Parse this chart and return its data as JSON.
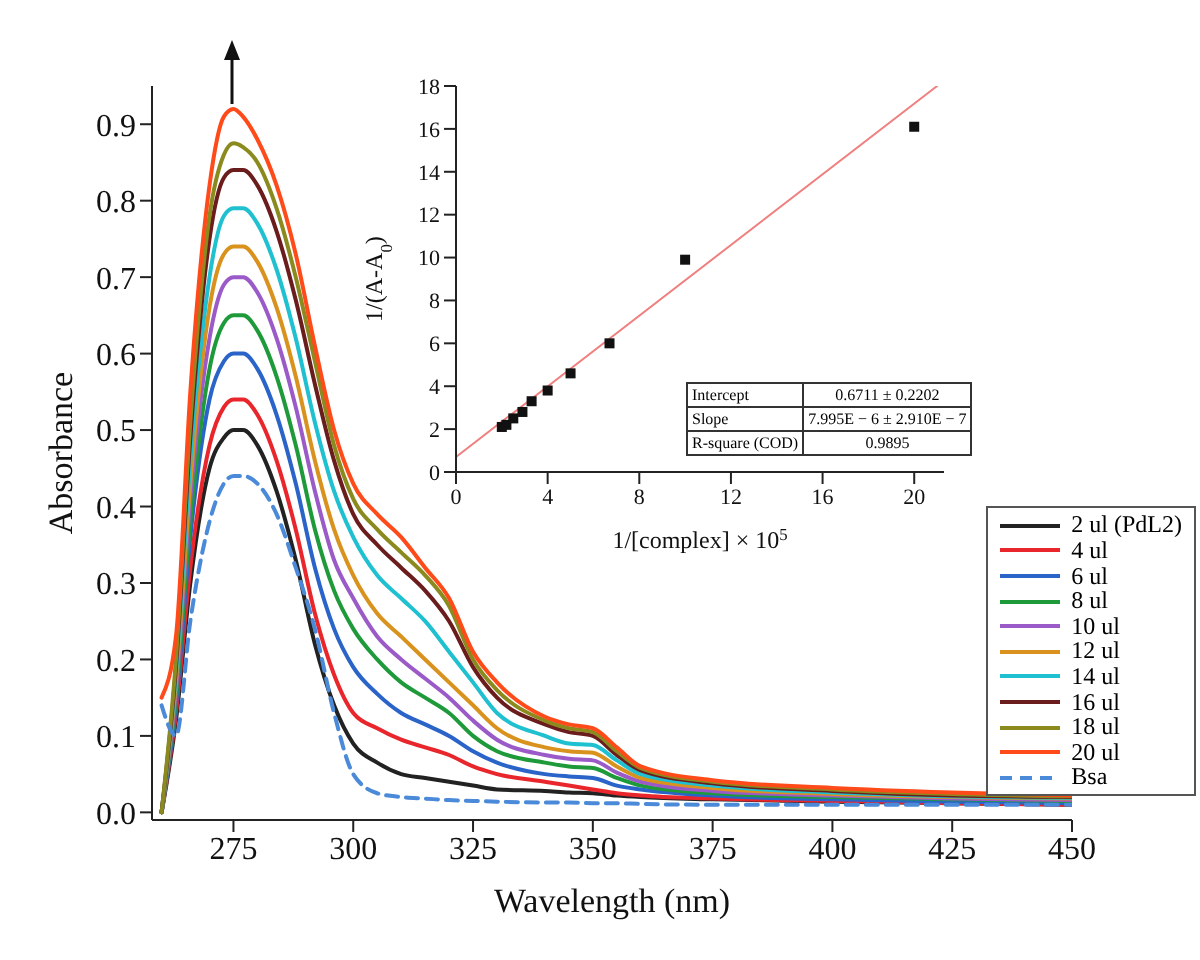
{
  "chart_data": [
    {
      "type": "line",
      "xlabel": "Wavelength (nm)",
      "ylabel": "Absorbance",
      "x": [
        260,
        263,
        266,
        270,
        273,
        275,
        277,
        280,
        284,
        288,
        292,
        296,
        300,
        305,
        310,
        315,
        320,
        325,
        330,
        340,
        345,
        350,
        355,
        360,
        375,
        400,
        425,
        450
      ],
      "series": [
        {
          "name": "2 ul (PdL2)",
          "color": "#222222",
          "values": [
            0.0,
            0.12,
            0.3,
            0.45,
            0.49,
            0.5,
            0.5,
            0.48,
            0.42,
            0.33,
            0.22,
            0.14,
            0.09,
            0.065,
            0.05,
            0.045,
            0.04,
            0.035,
            0.03,
            0.028,
            0.026,
            0.025,
            0.022,
            0.02,
            0.017,
            0.014,
            0.012,
            0.01
          ]
        },
        {
          "name": "4 ul",
          "color": "#e8262b",
          "values": [
            0.0,
            0.13,
            0.32,
            0.48,
            0.53,
            0.54,
            0.54,
            0.52,
            0.46,
            0.37,
            0.26,
            0.18,
            0.13,
            0.11,
            0.095,
            0.085,
            0.075,
            0.06,
            0.05,
            0.04,
            0.035,
            0.03,
            0.025,
            0.022,
            0.018,
            0.015,
            0.012,
            0.01
          ]
        },
        {
          "name": "6 ul",
          "color": "#2a64c8",
          "values": [
            0.0,
            0.14,
            0.36,
            0.54,
            0.59,
            0.6,
            0.6,
            0.58,
            0.52,
            0.43,
            0.32,
            0.24,
            0.19,
            0.155,
            0.13,
            0.115,
            0.1,
            0.08,
            0.065,
            0.05,
            0.047,
            0.045,
            0.035,
            0.03,
            0.022,
            0.017,
            0.014,
            0.012
          ]
        },
        {
          "name": "8 ul",
          "color": "#1f9a3a",
          "values": [
            0.0,
            0.15,
            0.38,
            0.58,
            0.64,
            0.65,
            0.65,
            0.63,
            0.57,
            0.48,
            0.37,
            0.29,
            0.24,
            0.2,
            0.17,
            0.15,
            0.13,
            0.1,
            0.08,
            0.065,
            0.06,
            0.058,
            0.045,
            0.035,
            0.025,
            0.02,
            0.017,
            0.015
          ]
        },
        {
          "name": "10 ul",
          "color": "#9a5ac8",
          "values": [
            0.0,
            0.16,
            0.41,
            0.62,
            0.69,
            0.7,
            0.7,
            0.68,
            0.62,
            0.53,
            0.42,
            0.33,
            0.28,
            0.23,
            0.2,
            0.175,
            0.15,
            0.12,
            0.095,
            0.075,
            0.07,
            0.068,
            0.052,
            0.04,
            0.028,
            0.022,
            0.018,
            0.016
          ]
        },
        {
          "name": "12 ul",
          "color": "#d9921e",
          "values": [
            0.0,
            0.17,
            0.43,
            0.66,
            0.73,
            0.74,
            0.74,
            0.72,
            0.66,
            0.57,
            0.46,
            0.37,
            0.31,
            0.26,
            0.23,
            0.2,
            0.17,
            0.14,
            0.11,
            0.085,
            0.08,
            0.078,
            0.06,
            0.045,
            0.032,
            0.024,
            0.02,
            0.018
          ]
        },
        {
          "name": "14 ul",
          "color": "#1fc0d0",
          "values": [
            0.0,
            0.18,
            0.46,
            0.7,
            0.78,
            0.79,
            0.79,
            0.77,
            0.71,
            0.62,
            0.51,
            0.42,
            0.36,
            0.31,
            0.28,
            0.25,
            0.21,
            0.17,
            0.13,
            0.1,
            0.09,
            0.088,
            0.068,
            0.05,
            0.035,
            0.026,
            0.021,
            0.019
          ]
        },
        {
          "name": "16 ul",
          "color": "#6b1c1c",
          "values": [
            0.0,
            0.19,
            0.49,
            0.75,
            0.83,
            0.84,
            0.84,
            0.82,
            0.76,
            0.67,
            0.56,
            0.46,
            0.39,
            0.35,
            0.32,
            0.29,
            0.25,
            0.19,
            0.15,
            0.115,
            0.105,
            0.1,
            0.075,
            0.055,
            0.038,
            0.028,
            0.022,
            0.02
          ]
        },
        {
          "name": "18 ul",
          "color": "#8a8a1e",
          "values": [
            0.0,
            0.2,
            0.51,
            0.78,
            0.86,
            0.875,
            0.87,
            0.85,
            0.79,
            0.7,
            0.59,
            0.48,
            0.41,
            0.37,
            0.34,
            0.31,
            0.27,
            0.2,
            0.16,
            0.12,
            0.11,
            0.105,
            0.08,
            0.058,
            0.04,
            0.03,
            0.024,
            0.021
          ]
        },
        {
          "name": "20 ul",
          "color": "#ff4a1a",
          "values": [
            0.15,
            0.23,
            0.55,
            0.82,
            0.91,
            0.92,
            0.91,
            0.88,
            0.82,
            0.73,
            0.61,
            0.5,
            0.43,
            0.39,
            0.36,
            0.32,
            0.28,
            0.21,
            0.17,
            0.125,
            0.115,
            0.11,
            0.085,
            0.06,
            0.042,
            0.032,
            0.026,
            0.022
          ]
        },
        {
          "name": "Bsa",
          "color": "#4a8ad8",
          "line_style": "dashed",
          "values": [
            0.14,
            0.1,
            0.25,
            0.38,
            0.43,
            0.44,
            0.44,
            0.43,
            0.39,
            0.32,
            0.24,
            0.13,
            0.05,
            0.025,
            0.02,
            0.018,
            0.016,
            0.015,
            0.014,
            0.013,
            0.013,
            0.012,
            0.012,
            0.011,
            0.01,
            0.01,
            0.01,
            0.01
          ]
        }
      ],
      "xlim": [
        258,
        450
      ],
      "xticks": [
        275,
        300,
        325,
        350,
        375,
        400,
        425,
        450
      ],
      "ylim": [
        -0.01,
        0.95
      ],
      "yticks": [
        {
          "value": 0,
          "label": "0.0"
        },
        {
          "value": 0.1,
          "label": "0.1"
        },
        {
          "value": 0.2,
          "label": "0.2"
        },
        {
          "value": 0.3,
          "label": "0.3"
        },
        {
          "value": 0.4,
          "label": "0.4"
        },
        {
          "value": 0.5,
          "label": "0.5"
        },
        {
          "value": 0.6,
          "label": "0.6"
        },
        {
          "value": 0.7,
          "label": "0.7"
        },
        {
          "value": 0.8,
          "label": "0.8"
        },
        {
          "value": 0.9,
          "label": "0.9"
        }
      ],
      "legend": "bottom right",
      "marker": "none",
      "line_style": "solid"
    },
    {
      "type": "scatter",
      "xlabel": "1/[complex] × 10$^{5}$",
      "ylabel": "1/(A-A$_{0}$)",
      "series": [
        {
          "color": "#111111",
          "marker": "square",
          "x": [
            2,
            2.2,
            2.5,
            2.9,
            3.3,
            4,
            5,
            6.7,
            10,
            20
          ],
          "values": [
            2.1,
            2.2,
            2.5,
            2.8,
            3.3,
            3.8,
            4.6,
            6.0,
            9.9,
            16.1
          ]
        },
        {
          "type": "line",
          "color": "#f08080",
          "marker": "none",
          "x": [
            0,
            21
          ],
          "values": [
            0.7,
            18
          ]
        }
      ],
      "xlim": [
        0,
        21.3
      ],
      "xticks": [
        0,
        4,
        8,
        12,
        16,
        20
      ],
      "ylim": [
        0,
        18
      ],
      "yticks": [
        0,
        2,
        4,
        6,
        8,
        10,
        12,
        14,
        16,
        18
      ],
      "annotations": [
        "Intercept",
        "0.6711 ± 0.2202",
        "Slope",
        "7.995E − 6 ± 2.910E − 7",
        "R-square (COD)",
        "0.9895"
      ]
    }
  ]
}
